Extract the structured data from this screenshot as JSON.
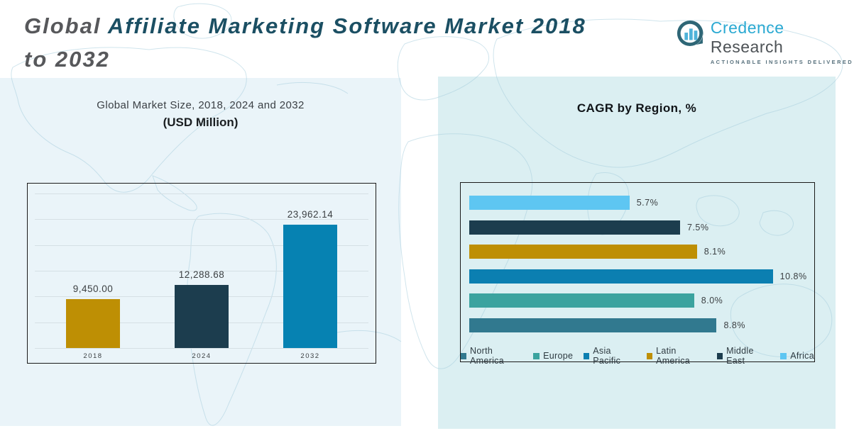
{
  "page": {
    "title_part_gray1": "Global",
    "title_part_teal": " Affiliate Marketing Software Market 2018",
    "title_part_gray2": "to 2032"
  },
  "logo": {
    "brand_primary": "Credence",
    "brand_secondary": " Research",
    "tagline": "Actionable Insights Delivered"
  },
  "left_panel": {
    "subtitle": "Global Market Size, 2018, 2024 and 2032",
    "unit_label": "(USD Million)"
  },
  "right_panel": {
    "title": "CAGR by Region, %"
  },
  "chart_data": [
    {
      "type": "bar",
      "title": "Global Market Size, 2018, 2024 and 2032",
      "subtitle": "(USD Million)",
      "categories": [
        "2018",
        "2024",
        "2032"
      ],
      "values": [
        9450.0,
        12288.68,
        23962.14
      ],
      "data_labels": [
        "9,450.00",
        "12,288.68",
        "23,962.14"
      ],
      "bar_colors": [
        "#BE8F04",
        "#1C3D4E",
        "#0682B2"
      ],
      "ylabel": "USD Million",
      "ylim": [
        0,
        30000
      ],
      "gridline_step": 5000,
      "grid": true,
      "legend_position": "none"
    },
    {
      "type": "bar",
      "orientation": "horizontal",
      "title": "CAGR by Region, %",
      "categories": [
        "Africa",
        "Middle East",
        "Latin America",
        "Asia Pacific",
        "Europe",
        "North America"
      ],
      "values": [
        5.7,
        7.5,
        8.1,
        10.8,
        8.0,
        8.8
      ],
      "data_labels": [
        "5.7%",
        "7.5%",
        "8.1%",
        "10.8%",
        "8.0%",
        "8.8%"
      ],
      "bar_colors": [
        "#5EC6F2",
        "#1C3D4E",
        "#BE8F04",
        "#0B7FB1",
        "#3BA39F",
        "#31798F"
      ],
      "xlim": [
        0,
        12
      ],
      "grid": false,
      "legend_position": "bottom",
      "legend": [
        {
          "label": "North America",
          "color": "#31798F"
        },
        {
          "label": "Europe",
          "color": "#3BA39F"
        },
        {
          "label": "Asia Pacific",
          "color": "#0B7FB1"
        },
        {
          "label": "Latin America",
          "color": "#BE8F04"
        },
        {
          "label": "Middle East",
          "color": "#1C3D4E"
        },
        {
          "label": "Africa",
          "color": "#5EC6F2"
        }
      ]
    }
  ],
  "colors": {
    "title_gray": "#57585B",
    "title_teal": "#1B4F63",
    "brand_cyan": "#2AA9D2",
    "left_panel_bg": "#EAF4F9",
    "right_panel_bg": "#DBEFF2",
    "gold": "#BE8F04",
    "navy": "#1C3D4E",
    "blue": "#0682B2",
    "light_blue": "#5EC6F2",
    "teal": "#3BA39F",
    "steel_blue": "#31798F"
  }
}
